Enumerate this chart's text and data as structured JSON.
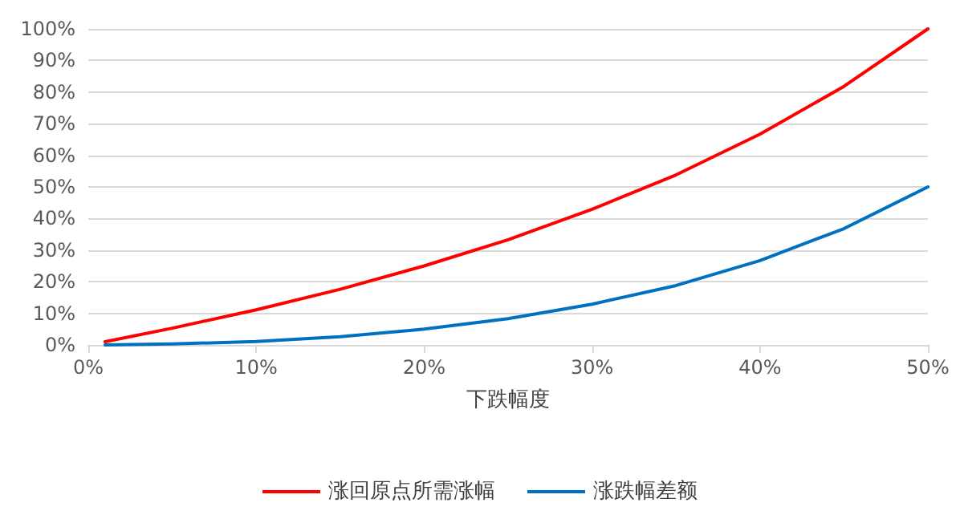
{
  "chart_data": {
    "type": "line",
    "xlabel": "下跌幅度",
    "x": [
      1,
      5,
      10,
      15,
      20,
      25,
      30,
      35,
      40,
      45,
      50
    ],
    "series": [
      {
        "name": "涨回原点所需涨幅",
        "color": "#ff0000",
        "values": [
          1.0,
          5.3,
          11.1,
          17.6,
          25.0,
          33.3,
          42.9,
          53.8,
          66.7,
          81.8,
          100.0
        ]
      },
      {
        "name": "涨跌幅差额",
        "color": "#0070c0",
        "values": [
          0.0,
          0.3,
          1.1,
          2.6,
          5.0,
          8.3,
          12.9,
          18.8,
          26.7,
          36.8,
          50.0
        ]
      }
    ],
    "xlim": [
      0,
      50
    ],
    "xticks": [
      {
        "value": 0,
        "label": "0%"
      },
      {
        "value": 10,
        "label": "10%"
      },
      {
        "value": 20,
        "label": "20%"
      },
      {
        "value": 30,
        "label": "30%"
      },
      {
        "value": 40,
        "label": "40%"
      },
      {
        "value": 50,
        "label": "50%"
      }
    ],
    "ylim": [
      0,
      100
    ],
    "yticks": [
      {
        "value": 0,
        "label": "0%"
      },
      {
        "value": 10,
        "label": "10%"
      },
      {
        "value": 20,
        "label": "20%"
      },
      {
        "value": 30,
        "label": "30%"
      },
      {
        "value": 40,
        "label": "40%"
      },
      {
        "value": 50,
        "label": "50%"
      },
      {
        "value": 60,
        "label": "60%"
      },
      {
        "value": 70,
        "label": "70%"
      },
      {
        "value": 80,
        "label": "80%"
      },
      {
        "value": 90,
        "label": "90%"
      },
      {
        "value": 100,
        "label": "100%"
      }
    ],
    "grid": "y",
    "legend": "bottom",
    "marker": "none",
    "line_style": "solid"
  }
}
